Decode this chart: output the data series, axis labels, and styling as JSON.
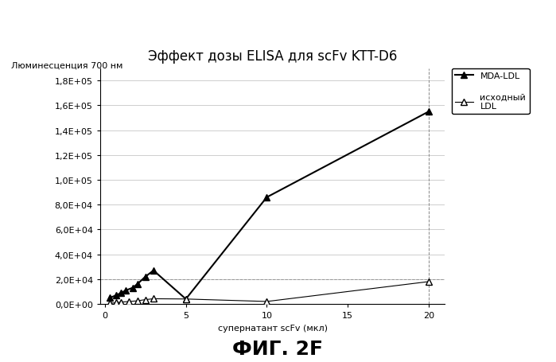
{
  "title": "Эффект дозы ELISA для scFv KTT-D6",
  "ylabel": "Люминесценция 700 нм",
  "xlabel": "супернатант scFv (мкл)",
  "caption": "ФИГ. 2F",
  "mda_ldl_x": [
    0.3,
    0.7,
    1.0,
    1.3,
    1.7,
    2.0,
    2.5,
    3.0,
    5.0,
    10.0,
    20.0
  ],
  "mda_ldl_y": [
    5000,
    7000,
    9000,
    11000,
    13000,
    16000,
    22000,
    27000,
    4000,
    86000,
    155000
  ],
  "ldl_x": [
    0.3,
    0.7,
    1.0,
    1.5,
    2.0,
    2.5,
    3.0,
    5.0,
    10.0,
    20.0
  ],
  "ldl_y": [
    500,
    1000,
    1500,
    2000,
    2500,
    3500,
    4200,
    4000,
    2000,
    18000
  ],
  "mda_label": "MDA-LDL",
  "ldl_label": "исходный\nLDL",
  "xlim": [
    -0.3,
    21
  ],
  "ylim": [
    0,
    190000
  ],
  "yticks": [
    0,
    20000,
    40000,
    60000,
    80000,
    100000,
    120000,
    140000,
    160000,
    180000
  ],
  "xticks": [
    0,
    5,
    10,
    15,
    20
  ],
  "line_color": "#000000",
  "bg_color": "#ffffff",
  "grid_color": "#bbbbbb",
  "title_fontsize": 12,
  "label_fontsize": 8,
  "tick_fontsize": 8,
  "legend_fontsize": 8,
  "caption_fontsize": 18
}
